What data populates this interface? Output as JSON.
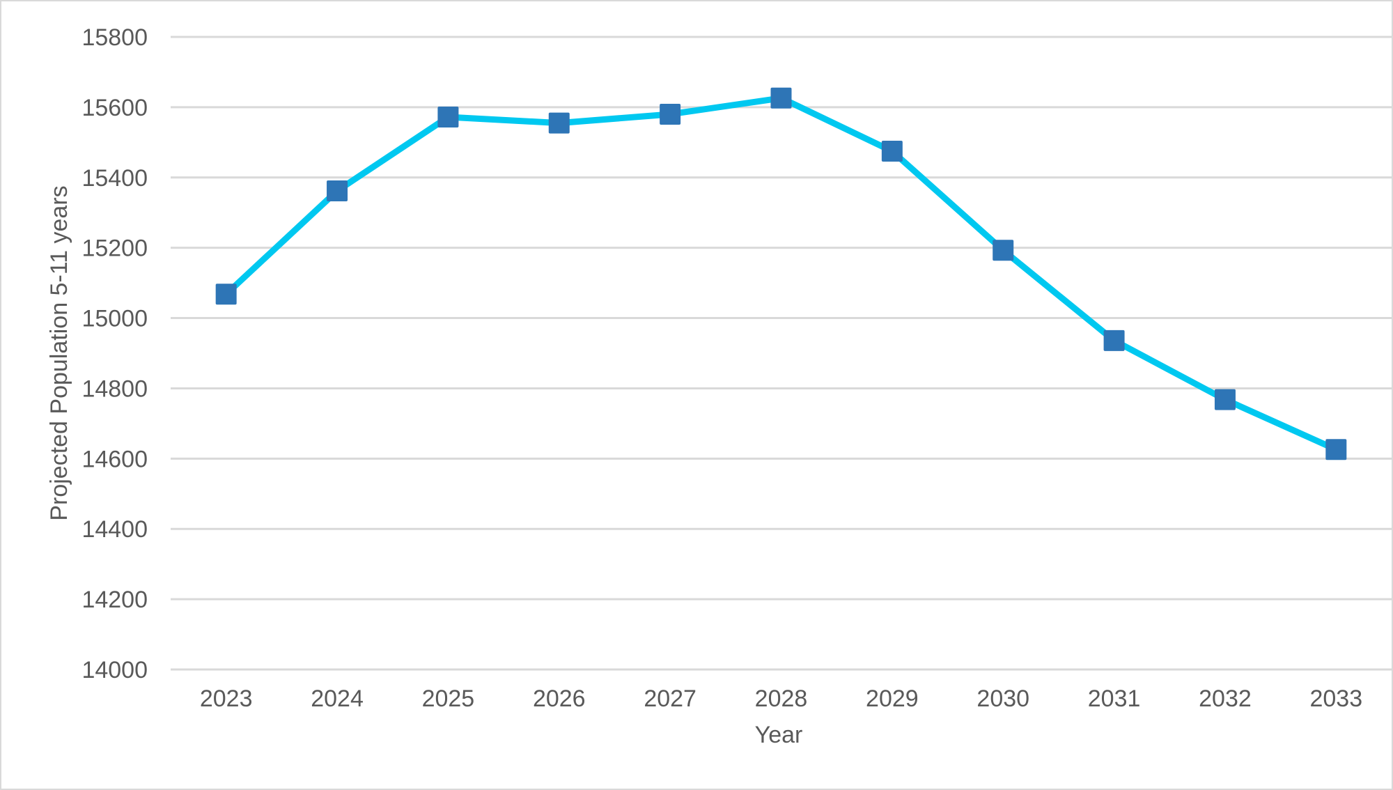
{
  "chart_data": {
    "type": "line",
    "categories": [
      "2023",
      "2024",
      "2025",
      "2026",
      "2027",
      "2028",
      "2029",
      "2030",
      "2031",
      "2032",
      "2033"
    ],
    "series": [
      {
        "values": [
          15068,
          15362,
          15572,
          15555,
          15580,
          15626,
          15475,
          15193,
          14936,
          14768,
          14626
        ]
      }
    ],
    "title": "",
    "xlabel": "Year",
    "ylabel": "Projected Population  5-11 years",
    "ylim": [
      14000,
      15800
    ],
    "yticks": [
      14000,
      14200,
      14400,
      14600,
      14800,
      15000,
      15200,
      15400,
      15600,
      15800
    ],
    "grid": true,
    "legend": "none",
    "colors": {
      "line": "#00C8F0",
      "marker": "#2E75B6",
      "grid": "#D9D9D9",
      "text": "#595959"
    },
    "marker": "square"
  }
}
